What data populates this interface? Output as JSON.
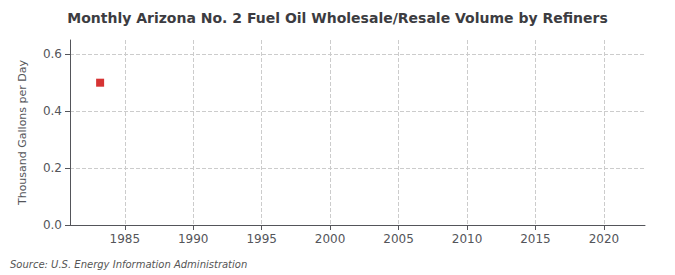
{
  "chart_data": {
    "type": "scatter",
    "title": "Monthly Arizona No. 2 Fuel Oil Wholesale/Resale Volume by Refiners",
    "ylabel": "Thousand Gallons per Day",
    "annotation": "Source: U.S. Energy Information Administration",
    "x": [
      1983.2
    ],
    "values": [
      0.5
    ],
    "color": "#cc0000",
    "marker": "square",
    "xlim": [
      1981,
      2023
    ],
    "xticks": [
      1985,
      1990,
      1995,
      2000,
      2005,
      2010,
      2015,
      2020
    ],
    "ylim": [
      0.0,
      0.65
    ],
    "yticks": [
      {
        "value": 0.0,
        "label": "0.0"
      },
      0.2,
      0.4,
      0.6
    ],
    "grid": true
  }
}
